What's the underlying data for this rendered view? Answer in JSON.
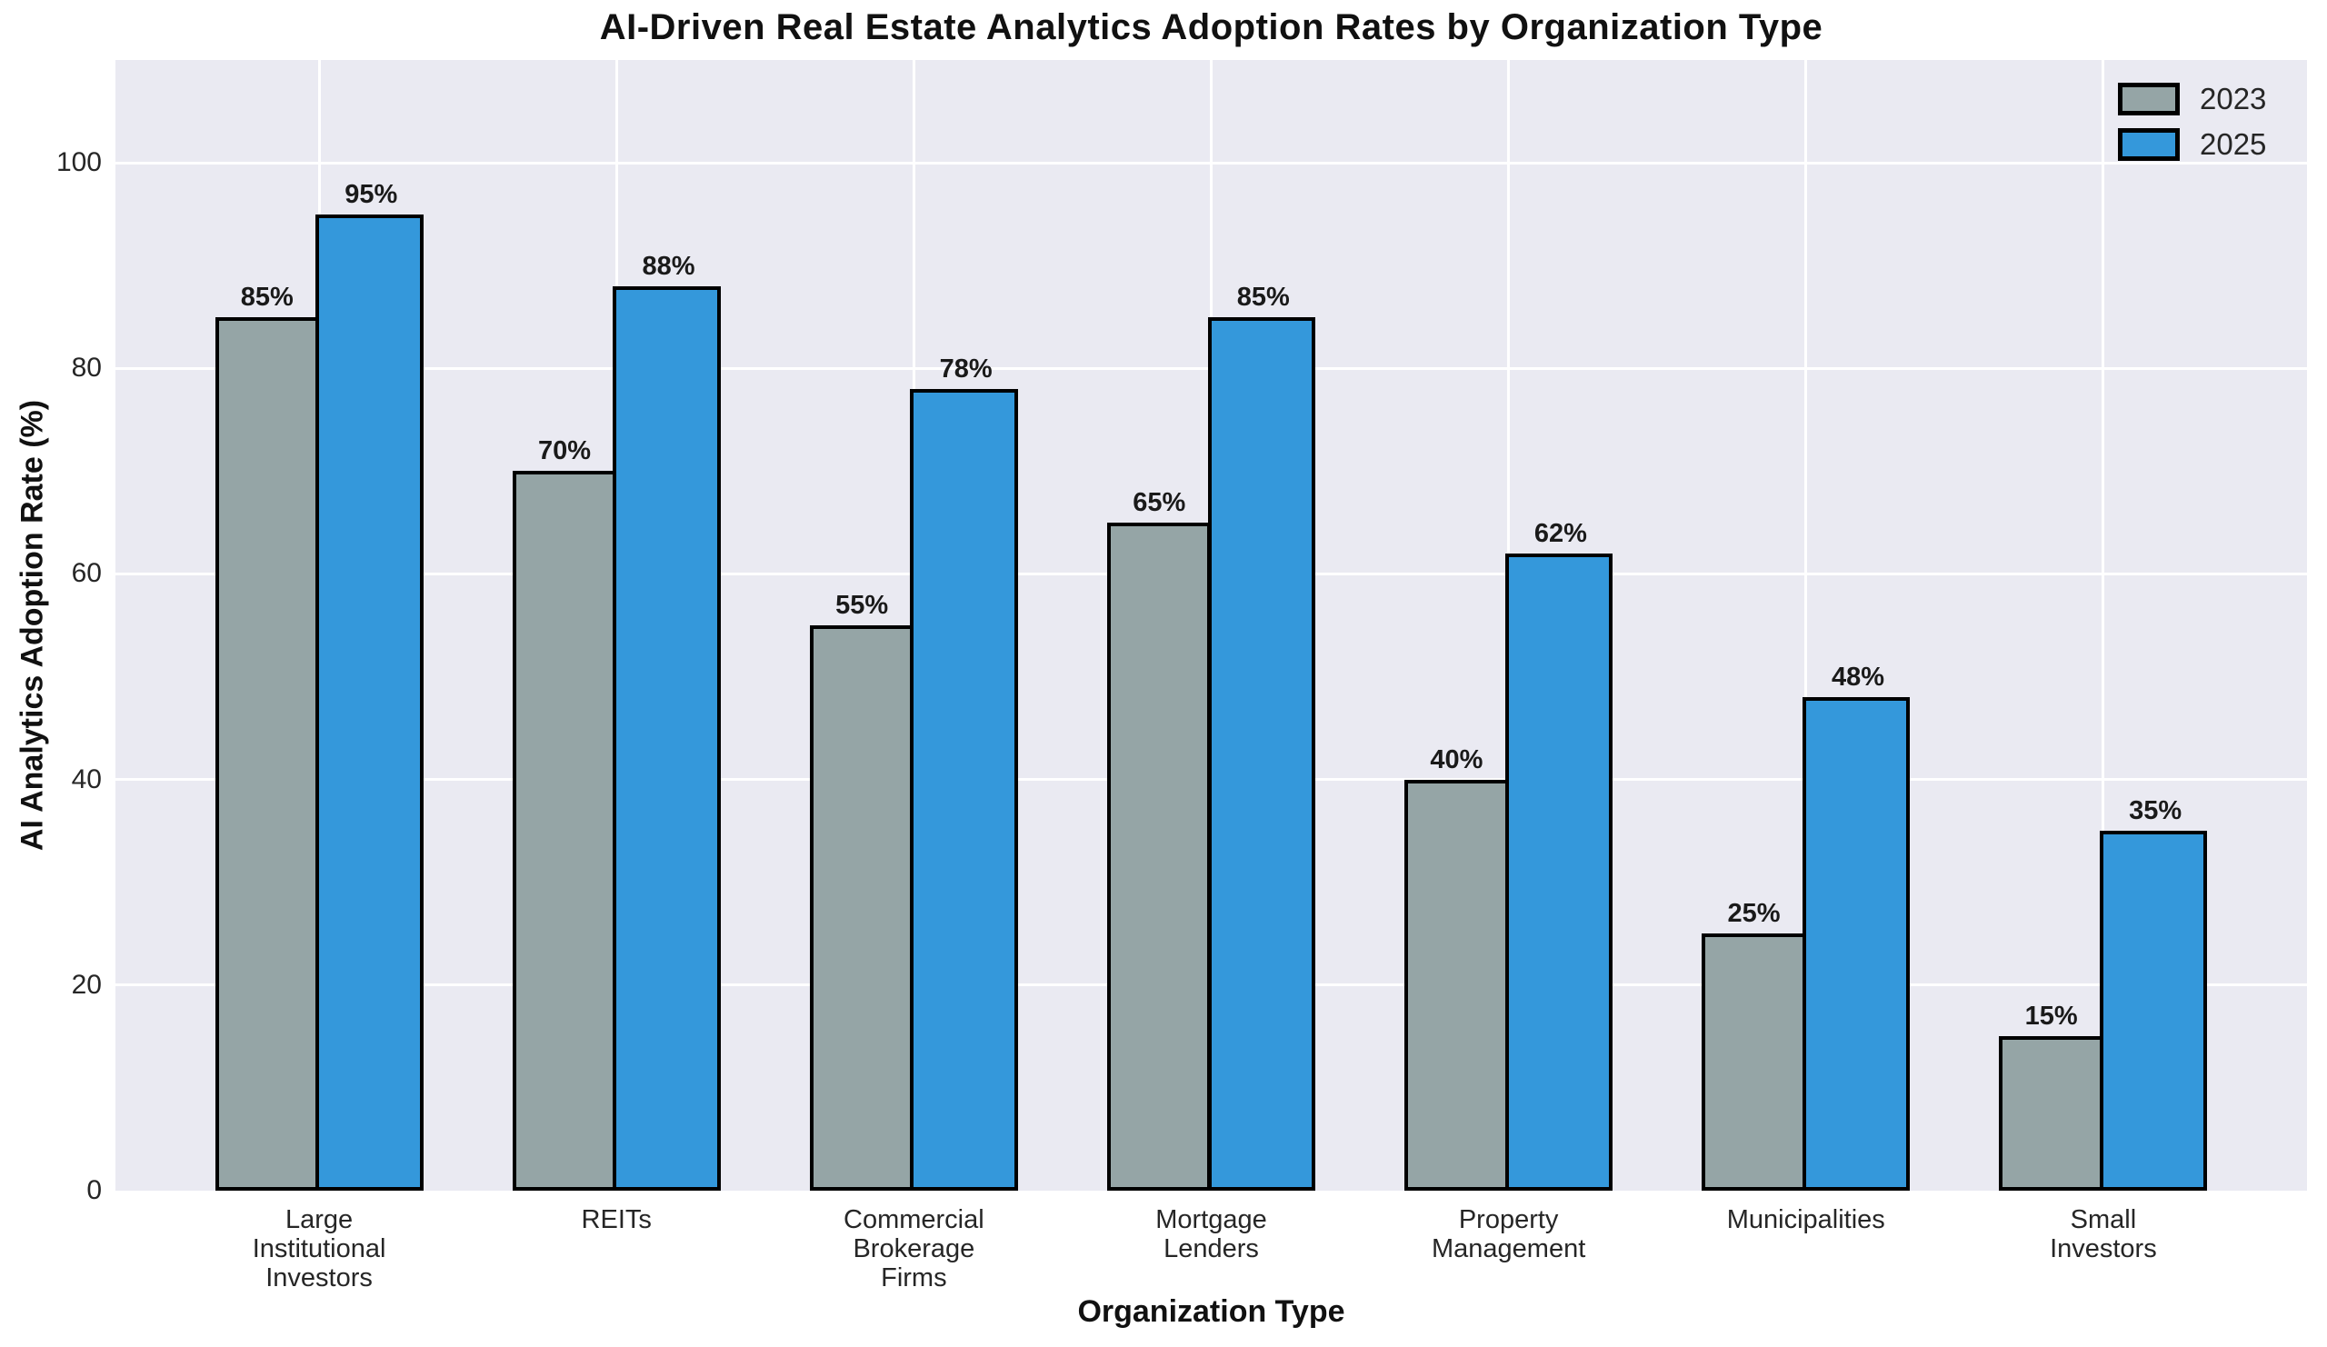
{
  "colors": {
    "figure_bg": "#ffffff",
    "plot_bg": "#eaeaf2",
    "grid": "#ffffff",
    "bar_2023": "#95a5a6",
    "bar_2025": "#3498db",
    "bar_edge": "#000000",
    "title_text": "#111111",
    "tick_text": "#262626",
    "value_label_text": "#1a1a1a"
  },
  "chart_data": {
    "type": "bar",
    "title": "AI-Driven Real Estate Analytics Adoption Rates by Organization Type",
    "xlabel": "Organization Type",
    "ylabel": "AI Analytics Adoption Rate (%)",
    "categories": [
      "Large\nInstitutional\nInvestors",
      "REITs",
      "Commercial\nBrokerage\nFirms",
      "Mortgage\nLenders",
      "Property\nManagement",
      "Municipalities",
      "Small\nInvestors"
    ],
    "series": [
      {
        "name": "2023",
        "color": "#95a5a6",
        "values": [
          85,
          70,
          55,
          65,
          40,
          25,
          15
        ]
      },
      {
        "name": "2025",
        "color": "#3498db",
        "values": [
          95,
          88,
          78,
          85,
          62,
          48,
          35
        ]
      }
    ],
    "value_suffix": "%",
    "yticks": [
      0,
      20,
      40,
      60,
      80,
      100
    ],
    "ylim": [
      0,
      110
    ],
    "bar_width": 0.35,
    "grid": true,
    "gridline_color": "#ffffff",
    "legend_position": "upper right"
  }
}
